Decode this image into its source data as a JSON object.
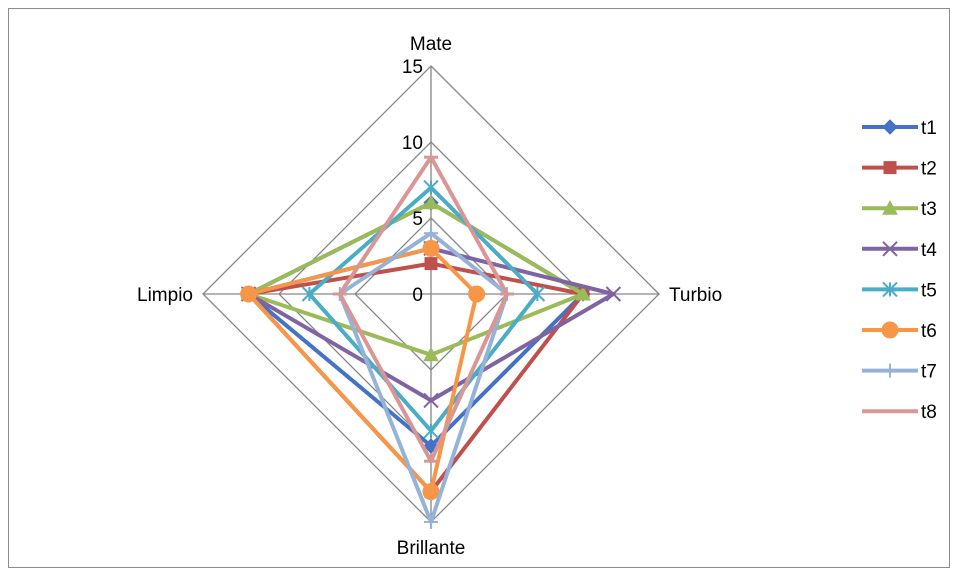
{
  "chart_data": {
    "type": "radar",
    "axes": [
      "Mate",
      "Turbio",
      "Brillante",
      "Limpio"
    ],
    "ticks": [
      "0",
      "5",
      "10",
      "15"
    ],
    "rmax": 15,
    "series": [
      {
        "name": "t1",
        "values": [
          6,
          10,
          10,
          12
        ],
        "color": "#4472C4",
        "marker": "diamond"
      },
      {
        "name": "t2",
        "values": [
          2,
          10,
          13,
          12
        ],
        "color": "#C0504D",
        "marker": "square"
      },
      {
        "name": "t3",
        "values": [
          6,
          10,
          4,
          12
        ],
        "color": "#9BBB59",
        "marker": "triangle"
      },
      {
        "name": "t4",
        "values": [
          3,
          12,
          7,
          12
        ],
        "color": "#8064A2",
        "marker": "x"
      },
      {
        "name": "t5",
        "values": [
          7,
          7,
          9,
          8
        ],
        "color": "#4BACC6",
        "marker": "star"
      },
      {
        "name": "t6",
        "values": [
          3,
          3,
          13,
          12
        ],
        "color": "#F79646",
        "marker": "circle"
      },
      {
        "name": "t7",
        "values": [
          4,
          5,
          15,
          6
        ],
        "color": "#95B3D7",
        "marker": "plus"
      },
      {
        "name": "t8",
        "values": [
          9,
          5,
          11,
          6
        ],
        "color": "#D99694",
        "marker": "dash"
      }
    ]
  }
}
